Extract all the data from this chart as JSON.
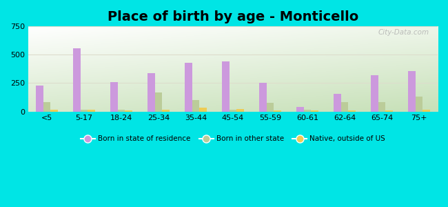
{
  "title": "Place of birth by age - Monticello",
  "categories": [
    "<5",
    "5-17",
    "18-24",
    "25-34",
    "35-44",
    "45-54",
    "55-59",
    "60-61",
    "62-64",
    "65-74",
    "75+"
  ],
  "born_in_state": [
    230,
    560,
    260,
    340,
    430,
    440,
    250,
    40,
    155,
    320,
    355
  ],
  "born_other_state": [
    85,
    15,
    15,
    165,
    100,
    15,
    75,
    15,
    80,
    80,
    130
  ],
  "native_outside_us": [
    15,
    15,
    10,
    15,
    35,
    20,
    10,
    10,
    10,
    10,
    15
  ],
  "color_state": "#cc99dd",
  "color_other": "#bbcc99",
  "color_native": "#eecc55",
  "ylim": [
    0,
    750
  ],
  "yticks": [
    0,
    250,
    500,
    750
  ],
  "background_outer": "#00e5e5",
  "grid_color": "#ddddcc",
  "title_fontsize": 14,
  "bar_width": 0.2,
  "watermark": "City-Data.com",
  "bg_top_color": "#f0f5ee",
  "bg_bottom_left_color": "#c8dfc0",
  "bg_top_right_color": "#f8f8f4"
}
